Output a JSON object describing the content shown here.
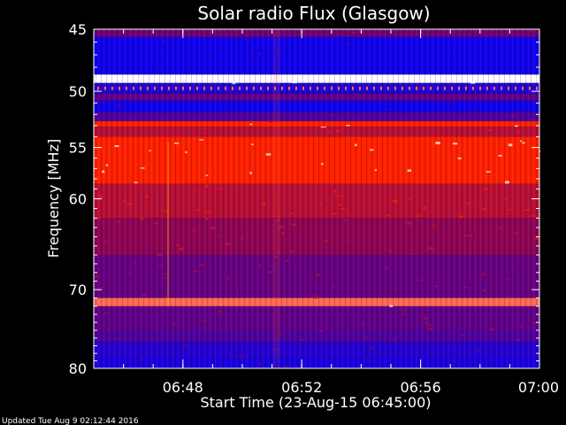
{
  "chart_data": {
    "type": "heatmap",
    "title": "Solar radio Flux (Glasgow)",
    "xlabel": "Start Time (23-Aug-15 06:45:00)",
    "ylabel": "Frequency [MHz]",
    "xlim": [
      "06:45",
      "07:00"
    ],
    "ylim": [
      45,
      80
    ],
    "ylog": true,
    "x_ticks": [
      "06:48",
      "06:52",
      "06:56",
      "07:00"
    ],
    "y_ticks": [
      45,
      50,
      55,
      60,
      70,
      80
    ],
    "colors": {
      "background": "#000000",
      "low": "#0000ff",
      "mid": "#800060",
      "high": "#ff2000",
      "peak": "#ffffff"
    },
    "bands": [
      {
        "from": 45.0,
        "to": 45.6,
        "level": 0.35
      },
      {
        "from": 45.6,
        "to": 48.6,
        "level": 0.05
      },
      {
        "from": 48.6,
        "to": 49.3,
        "level": 1.0
      },
      {
        "from": 49.3,
        "to": 50.2,
        "level": 0.1
      },
      {
        "from": 50.2,
        "to": 50.8,
        "level": 0.3
      },
      {
        "from": 50.8,
        "to": 51.8,
        "level": 0.05
      },
      {
        "from": 51.8,
        "to": 52.6,
        "level": 0.25
      },
      {
        "from": 52.6,
        "to": 53.1,
        "level": 0.85
      },
      {
        "from": 53.1,
        "to": 54.0,
        "level": 0.6
      },
      {
        "from": 54.0,
        "to": 58.5,
        "level": 0.85
      },
      {
        "from": 58.5,
        "to": 62.0,
        "level": 0.6
      },
      {
        "from": 62.0,
        "to": 66.0,
        "level": 0.45
      },
      {
        "from": 66.0,
        "to": 71.0,
        "level": 0.32
      },
      {
        "from": 71.0,
        "to": 72.0,
        "level": 0.9
      },
      {
        "from": 72.0,
        "to": 75.0,
        "level": 0.3
      },
      {
        "from": 75.0,
        "to": 76.5,
        "level": 0.25
      },
      {
        "from": 76.5,
        "to": 78.5,
        "level": 0.12
      },
      {
        "from": 78.5,
        "to": 80.0,
        "level": 0.08
      }
    ]
  },
  "footer": {
    "updated": "Updated Tue Aug  9 02:12:44 2016"
  }
}
